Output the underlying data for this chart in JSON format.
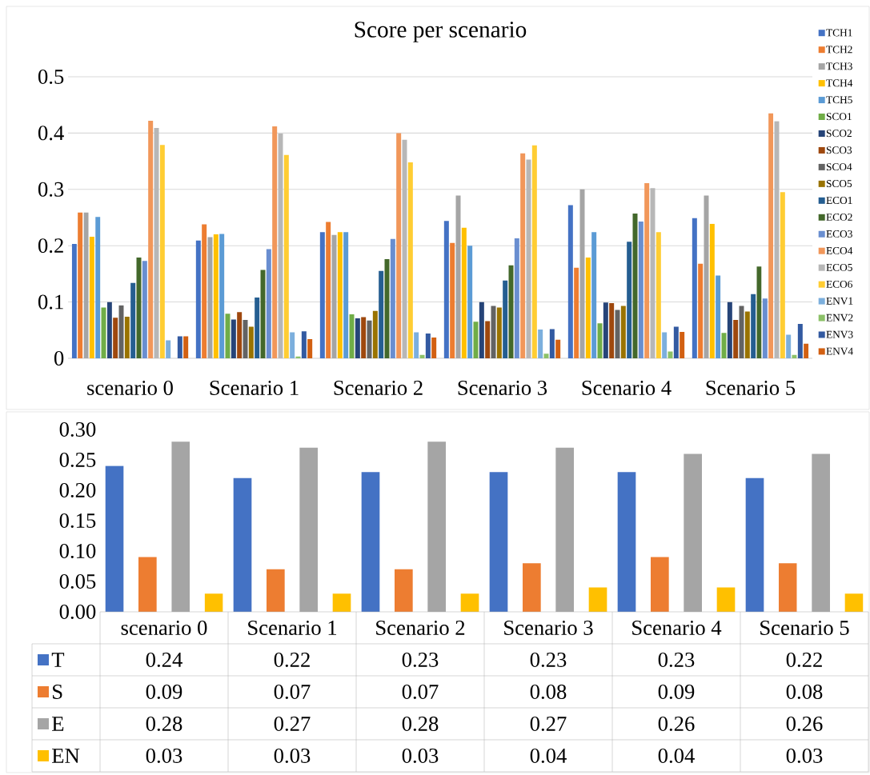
{
  "chart_data": [
    {
      "type": "bar",
      "title": "Score per scenario",
      "categories": [
        "scenario 0",
        "Scenario 1",
        "Scenario 2",
        "Scenario 3",
        "Scenario 4",
        "Scenario 5"
      ],
      "ylim": [
        0,
        0.5
      ],
      "yticks": [
        0,
        0.1,
        0.2,
        0.3,
        0.4,
        0.5
      ],
      "grid": "y",
      "legend": "right",
      "series": [
        {
          "name": "TCH1",
          "color": "#4472c4",
          "values": [
            0.203,
            0.209,
            0.224,
            0.244,
            0.272,
            0.249
          ]
        },
        {
          "name": "TCH2",
          "color": "#ed7d31",
          "values": [
            0.259,
            0.238,
            0.242,
            0.205,
            0.161,
            0.168
          ]
        },
        {
          "name": "TCH3",
          "color": "#a5a5a5",
          "values": [
            0.259,
            0.215,
            0.219,
            0.289,
            0.3,
            0.289
          ]
        },
        {
          "name": "TCH4",
          "color": "#ffc000",
          "values": [
            0.216,
            0.22,
            0.224,
            0.232,
            0.179,
            0.239
          ]
        },
        {
          "name": "TCH5",
          "color": "#5b9bd5",
          "values": [
            0.251,
            0.221,
            0.224,
            0.2,
            0.224,
            0.147
          ]
        },
        {
          "name": "SCO1",
          "color": "#70ad47",
          "values": [
            0.09,
            0.079,
            0.078,
            0.065,
            0.062,
            0.045
          ]
        },
        {
          "name": "SCO2",
          "color": "#264478",
          "values": [
            0.1,
            0.069,
            0.071,
            0.1,
            0.099,
            0.1
          ]
        },
        {
          "name": "SCO3",
          "color": "#9e480e",
          "values": [
            0.072,
            0.082,
            0.073,
            0.066,
            0.098,
            0.068
          ]
        },
        {
          "name": "SCO4",
          "color": "#636363",
          "values": [
            0.094,
            0.068,
            0.067,
            0.093,
            0.086,
            0.093
          ]
        },
        {
          "name": "SCO5",
          "color": "#997300",
          "values": [
            0.074,
            0.056,
            0.084,
            0.09,
            0.093,
            0.083
          ]
        },
        {
          "name": "ECO1",
          "color": "#255e91",
          "values": [
            0.134,
            0.108,
            0.155,
            0.138,
            0.207,
            0.114
          ]
        },
        {
          "name": "ECO2",
          "color": "#43682b",
          "values": [
            0.179,
            0.157,
            0.176,
            0.165,
            0.257,
            0.163
          ]
        },
        {
          "name": "ECO3",
          "color": "#698ed0",
          "values": [
            0.173,
            0.194,
            0.212,
            0.213,
            0.243,
            0.106
          ]
        },
        {
          "name": "ECO4",
          "color": "#f1975a",
          "values": [
            0.422,
            0.412,
            0.4,
            0.364,
            0.311,
            0.435
          ]
        },
        {
          "name": "ECO5",
          "color": "#b7b7b7",
          "values": [
            0.409,
            0.399,
            0.388,
            0.353,
            0.302,
            0.421
          ]
        },
        {
          "name": "ECO6",
          "color": "#ffcd33",
          "values": [
            0.379,
            0.361,
            0.348,
            0.378,
            0.224,
            0.295
          ]
        },
        {
          "name": "ENV1",
          "color": "#7cafdd",
          "values": [
            0.032,
            0.046,
            0.046,
            0.051,
            0.046,
            0.042
          ]
        },
        {
          "name": "ENV2",
          "color": "#8cc168",
          "values": [
            0,
            0.003,
            0.006,
            0.008,
            0.012,
            0.006
          ]
        },
        {
          "name": "ENV3",
          "color": "#335aa1",
          "values": [
            0.039,
            0.048,
            0.044,
            0.052,
            0.056,
            0.061
          ]
        },
        {
          "name": "ENV4",
          "color": "#d26012",
          "values": [
            0.039,
            0.034,
            0.037,
            0.033,
            0.047,
            0.026
          ]
        }
      ]
    },
    {
      "type": "bar",
      "categories": [
        "scenario 0",
        "Scenario 1",
        "Scenario 2",
        "Scenario 3",
        "Scenario 4",
        "Scenario 5"
      ],
      "ylim": [
        0,
        0.3
      ],
      "yticks": [
        {
          "value": 0,
          "label": "0.00"
        },
        {
          "value": 0.05,
          "label": "0.05"
        },
        {
          "value": 0.1,
          "label": "0.10"
        },
        {
          "value": 0.15,
          "label": "0.15"
        },
        {
          "value": 0.2,
          "label": "0.20"
        },
        {
          "value": 0.25,
          "label": "0.25"
        },
        {
          "value": 0.3,
          "label": "0.30"
        }
      ],
      "legend": "bottom",
      "data_labels": true,
      "series": [
        {
          "name": "T",
          "color": "#4472c4",
          "values": [
            0.24,
            0.22,
            0.23,
            0.23,
            0.23,
            0.22
          ]
        },
        {
          "name": "S",
          "color": "#ed7d31",
          "values": [
            0.09,
            0.07,
            0.07,
            0.08,
            0.09,
            0.08
          ]
        },
        {
          "name": "E",
          "color": "#a5a5a5",
          "values": [
            0.28,
            0.27,
            0.28,
            0.27,
            0.26,
            0.26
          ]
        },
        {
          "name": "EN",
          "color": "#ffc000",
          "values": [
            0.03,
            0.03,
            0.03,
            0.04,
            0.04,
            0.03
          ]
        }
      ]
    }
  ]
}
